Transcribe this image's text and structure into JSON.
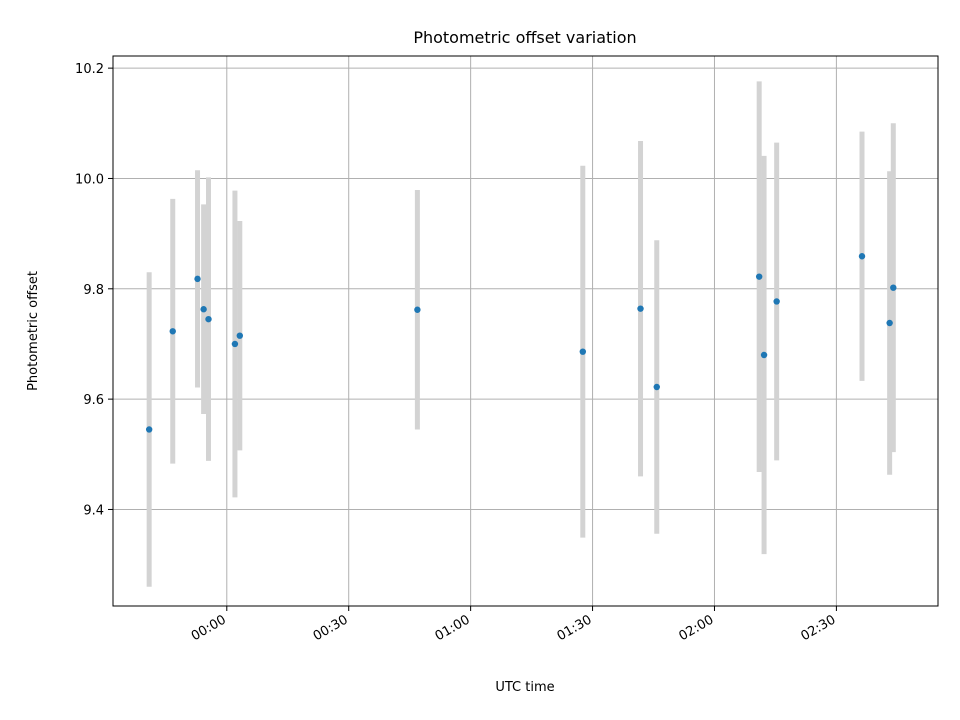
{
  "chart_data": {
    "type": "scatter",
    "title": "Photometric offset variation",
    "xlabel": "UTC time",
    "ylabel": "Photometric offset",
    "x_unit": "minutes relative to 00:00 UTC",
    "xlim": [
      -28,
      175
    ],
    "ylim": [
      9.225,
      10.222
    ],
    "grid": true,
    "x_ticks": [
      0,
      30,
      60,
      90,
      120,
      150
    ],
    "x_tick_labels": [
      "00:00",
      "00:30",
      "01:00",
      "01:30",
      "02:00",
      "02:30"
    ],
    "y_ticks": [
      9.4,
      9.6,
      9.8,
      10.0,
      10.2
    ],
    "y_tick_labels": [
      "9.4",
      "9.6",
      "9.8",
      "10.0",
      "10.2"
    ],
    "marker_color": "#1f77b4",
    "errorbar_color": "#d3d3d3",
    "points": [
      {
        "x": -19.1,
        "y": 9.545,
        "err": 0.285
      },
      {
        "x": -13.3,
        "y": 9.723,
        "err": 0.24
      },
      {
        "x": -7.2,
        "y": 9.818,
        "err": 0.197
      },
      {
        "x": -5.7,
        "y": 9.763,
        "err": 0.19
      },
      {
        "x": -4.5,
        "y": 9.745,
        "err": 0.257
      },
      {
        "x": 2.0,
        "y": 9.7,
        "err": 0.278
      },
      {
        "x": 3.2,
        "y": 9.715,
        "err": 0.208
      },
      {
        "x": 46.9,
        "y": 9.762,
        "err": 0.217
      },
      {
        "x": 87.6,
        "y": 9.686,
        "err": 0.337
      },
      {
        "x": 101.8,
        "y": 9.764,
        "err": 0.304
      },
      {
        "x": 105.8,
        "y": 9.622,
        "err": 0.266
      },
      {
        "x": 131.0,
        "y": 9.822,
        "err": 0.354
      },
      {
        "x": 132.2,
        "y": 9.68,
        "err": 0.361
      },
      {
        "x": 135.3,
        "y": 9.777,
        "err": 0.288
      },
      {
        "x": 156.3,
        "y": 9.859,
        "err": 0.226
      },
      {
        "x": 163.1,
        "y": 9.738,
        "err": 0.275
      },
      {
        "x": 164.0,
        "y": 9.802,
        "err": 0.298
      }
    ]
  }
}
